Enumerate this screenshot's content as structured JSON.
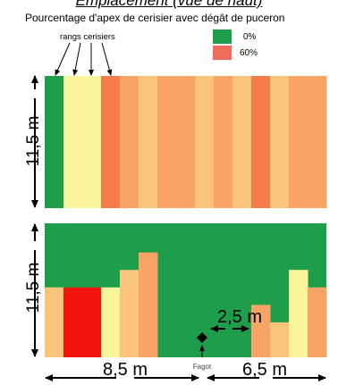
{
  "heading": "Emplacement (vue de haut)",
  "subtitle": "Pourcentage d'apex de cerisier avec dégât de puceron",
  "rows_label": "rangs cerisiers",
  "legend": [
    {
      "label": "0%",
      "color": "#1e9e4a"
    },
    {
      "label": "60%",
      "color": "#f06b5c"
    }
  ],
  "colors": {
    "green": "#1e9e4a",
    "yellow": "#faf59a",
    "orange_dark": "#f57d4c",
    "orange": "#f9a467",
    "orange_light": "#fac47d",
    "red": "#f2150e"
  },
  "top_plot": {
    "stripes": [
      "green",
      "yellow",
      "yellow",
      "orange_dark",
      "orange",
      "orange_light",
      "orange",
      "orange",
      "orange_light",
      "orange",
      "orange_light",
      "orange_dark",
      "orange_light",
      "orange",
      "orange"
    ]
  },
  "bottom_plot": {
    "bars": [
      {
        "col": 0,
        "height_m": 6.0,
        "color": "orange_light"
      },
      {
        "col": 1,
        "height_m": 6.0,
        "color": "red"
      },
      {
        "col": 2,
        "height_m": 6.0,
        "color": "red"
      },
      {
        "col": 3,
        "height_m": 6.0,
        "color": "yellow"
      },
      {
        "col": 4,
        "height_m": 7.5,
        "color": "orange_light"
      },
      {
        "col": 5,
        "height_m": 9.0,
        "color": "orange"
      },
      {
        "col": 11,
        "height_m": 4.5,
        "color": "orange"
      },
      {
        "col": 12,
        "height_m": 3.0,
        "color": "orange_light"
      },
      {
        "col": 13,
        "height_m": 7.5,
        "color": "yellow"
      },
      {
        "col": 14,
        "height_m": 6.0,
        "color": "orange"
      }
    ]
  },
  "dimensions": {
    "top_height": "11,5 m",
    "bottom_height": "11,5 m",
    "gap": "2,5 m",
    "left_width": "8,5 m",
    "right_width": "6,5 m",
    "fagot": "Fagot"
  }
}
